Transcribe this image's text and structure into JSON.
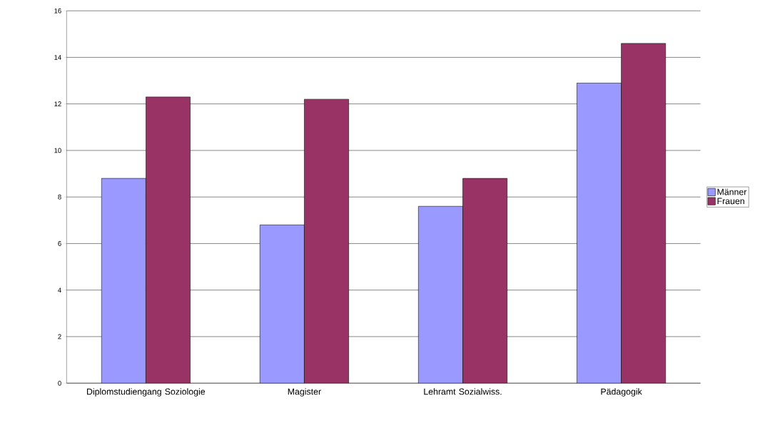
{
  "chart_data": {
    "type": "bar",
    "categories": [
      "Diplomstudiengang Soziologie",
      "Magister",
      "Lehramt Sozialwiss.",
      "Pädagogik"
    ],
    "series": [
      {
        "name": "Männer",
        "color": "#9999ff",
        "values": [
          8.8,
          6.8,
          7.6,
          12.9
        ]
      },
      {
        "name": "Frauen",
        "color": "#993366",
        "values": [
          12.3,
          12.2,
          8.8,
          14.6
        ]
      }
    ],
    "ylim": [
      0,
      16
    ],
    "yticks": [
      0,
      2,
      4,
      6,
      8,
      10,
      12,
      14,
      16
    ],
    "grid": "y",
    "legend": "right"
  }
}
